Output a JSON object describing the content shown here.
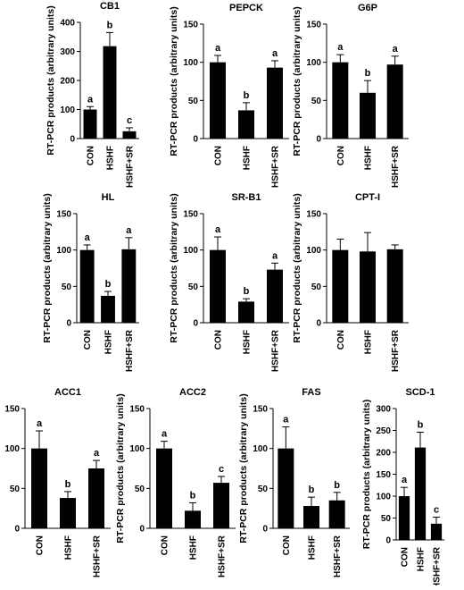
{
  "figure": {
    "categories": [
      "CON",
      "HSHF",
      "HSHF+SR"
    ],
    "ylabel": "RT-PCR products (arbitrary units)"
  },
  "chart_data": [
    {
      "type": "bar",
      "title": "CB1",
      "categories": [
        "CON",
        "HSHF",
        "HSHF+SR"
      ],
      "values": [
        100,
        318,
        25
      ],
      "errors": [
        10,
        47,
        12
      ],
      "letters": [
        "a",
        "b",
        "c"
      ],
      "ylabel": "RT-PCR products (arbitrary units)",
      "ylim": [
        0,
        400
      ],
      "yticks": [
        0,
        100,
        200,
        300,
        400
      ]
    },
    {
      "type": "bar",
      "title": "PEPCK",
      "categories": [
        "CON",
        "HSHF",
        "HSHF+SR"
      ],
      "values": [
        100,
        37,
        93
      ],
      "errors": [
        9,
        10,
        9
      ],
      "letters": [
        "a",
        "b",
        "a"
      ],
      "ylabel": "RT-PCR products (arbitrary units)",
      "ylim": [
        0,
        150
      ],
      "yticks": [
        0,
        50,
        100,
        150
      ]
    },
    {
      "type": "bar",
      "title": "G6P",
      "categories": [
        "CON",
        "HSHF",
        "HSHF+SR"
      ],
      "values": [
        100,
        60,
        97
      ],
      "errors": [
        10,
        16,
        11
      ],
      "letters": [
        "a",
        "b",
        "a"
      ],
      "ylabel": "RT-PCR products (arbitrary units)",
      "ylim": [
        0,
        150
      ],
      "yticks": [
        0,
        50,
        100,
        150
      ]
    },
    {
      "type": "bar",
      "title": "HL",
      "categories": [
        "CON",
        "HSHF",
        "HSHF+SR"
      ],
      "values": [
        100,
        37,
        101
      ],
      "errors": [
        7,
        6,
        16
      ],
      "letters": [
        "a",
        "b",
        "a"
      ],
      "ylabel": "RT-PCR products (arbitrary units)",
      "ylim": [
        0,
        150
      ],
      "yticks": [
        0,
        50,
        100,
        150
      ]
    },
    {
      "type": "bar",
      "title": "SR-B1",
      "categories": [
        "CON",
        "HSHF",
        "HSHF+SR"
      ],
      "values": [
        100,
        29,
        73
      ],
      "errors": [
        18,
        4,
        9
      ],
      "letters": [
        "a",
        "b",
        "a"
      ],
      "ylabel": "RT-PCR products (arbitrary units)",
      "ylim": [
        0,
        150
      ],
      "yticks": [
        0,
        50,
        100,
        150
      ]
    },
    {
      "type": "bar",
      "title": "CPT-I",
      "categories": [
        "CON",
        "HSHF",
        "HSHF+SR"
      ],
      "values": [
        100,
        98,
        101
      ],
      "errors": [
        15,
        26,
        6
      ],
      "letters": [
        "",
        "",
        ""
      ],
      "ylabel": "RT-PCR products (arbitrary units)",
      "ylim": [
        0,
        150
      ],
      "yticks": [
        0,
        50,
        100,
        150
      ]
    },
    {
      "type": "bar",
      "title": "ACC1",
      "categories": [
        "CON",
        "HSHF",
        "HSHF+SR"
      ],
      "values": [
        100,
        38,
        75
      ],
      "errors": [
        22,
        8,
        10
      ],
      "letters": [
        "a",
        "b",
        "a"
      ],
      "ylabel": "RT-PCR products (arbitrary units)",
      "ylim": [
        0,
        150
      ],
      "yticks": [
        0,
        50,
        100,
        150
      ]
    },
    {
      "type": "bar",
      "title": "ACC2",
      "categories": [
        "CON",
        "HSHF",
        "HSHF+SR"
      ],
      "values": [
        100,
        22,
        57
      ],
      "errors": [
        9,
        10,
        8
      ],
      "letters": [
        "a",
        "b",
        "c"
      ],
      "ylabel": "RT-PCR products (arbitrary units)",
      "ylim": [
        0,
        150
      ],
      "yticks": [
        0,
        50,
        100,
        150
      ]
    },
    {
      "type": "bar",
      "title": "FAS",
      "categories": [
        "CON",
        "HSHF",
        "HSHF+SR"
      ],
      "values": [
        100,
        28,
        35
      ],
      "errors": [
        27,
        11,
        10
      ],
      "letters": [
        "a",
        "b",
        "b"
      ],
      "ylabel": "RT-PCR products (arbitrary units)",
      "ylim": [
        0,
        150
      ],
      "yticks": [
        0,
        50,
        100,
        150
      ]
    },
    {
      "type": "bar",
      "title": "SCD-1",
      "categories": [
        "CON",
        "HSHF",
        "HSHF+SR"
      ],
      "values": [
        100,
        211,
        37
      ],
      "errors": [
        20,
        35,
        15
      ],
      "letters": [
        "a",
        "b",
        "c"
      ],
      "ylabel": "RT-PCR products (arbitrary units)",
      "ylim": [
        0,
        300
      ],
      "yticks": [
        0,
        50,
        100,
        150,
        200,
        250,
        300
      ]
    }
  ]
}
